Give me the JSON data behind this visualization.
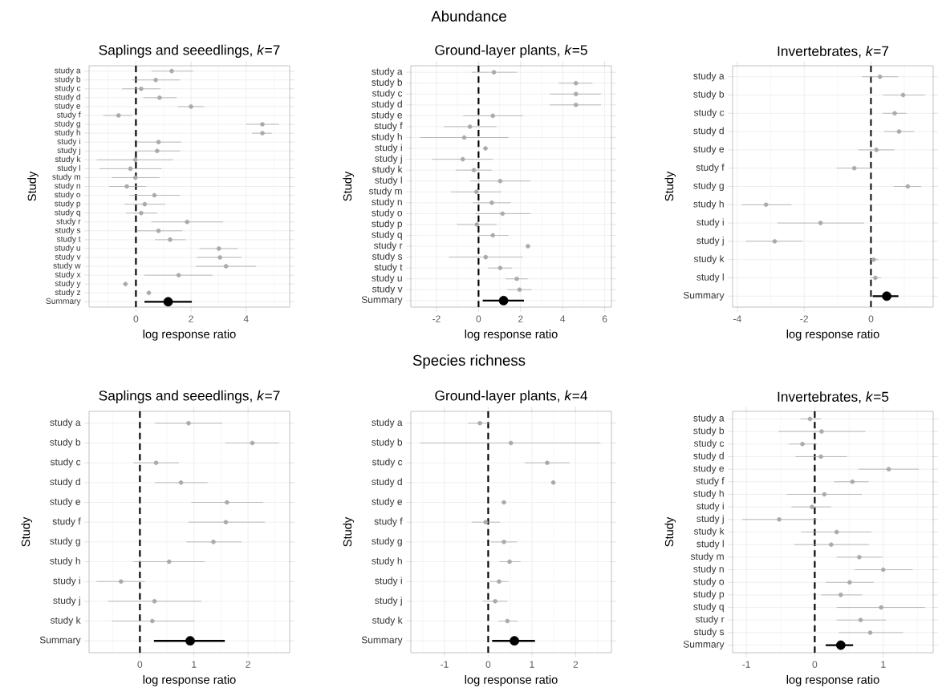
{
  "chart_data": [
    {
      "type": "scatter",
      "orientation": "horizontal",
      "title": "Saplings and seeedlings, *k*=7",
      "xlabel": "log response ratio",
      "ylabel": "Study",
      "grid": true,
      "marker": "circle",
      "categories": [
        "study a",
        "study b",
        "study c",
        "study d",
        "study e",
        "study f",
        "study g",
        "study h",
        "study i",
        "study j",
        "study k",
        "study l",
        "study m",
        "study n",
        "study o",
        "study p",
        "study q",
        "study r",
        "study s",
        "study t",
        "study u",
        "study v",
        "study w",
        "study x",
        "study y",
        "study z",
        "Summary"
      ],
      "xlim": [
        -1.7,
        5.58
      ],
      "xticks": [
        {
          "value": -1,
          "label": null
        },
        0,
        {
          "value": 1,
          "label": null
        },
        2,
        {
          "value": 3,
          "label": null
        },
        4,
        {
          "value": 5,
          "label": null
        }
      ],
      "ref_lines": [
        {
          "axis": "x",
          "value": 0,
          "line_style": "dashed",
          "color": "#000000"
        }
      ],
      "series": [
        {
          "color": "#aaaaaa",
          "values": [
            1.3,
            0.72,
            0.19,
            0.86,
            2.0,
            -0.63,
            4.59,
            4.59,
            0.82,
            0.77,
            -0.02,
            -0.2,
            -0.02,
            -0.33,
            0.67,
            0.32,
            0.19,
            1.86,
            0.82,
            1.24,
            3.01,
            3.05,
            3.27,
            1.55,
            -0.38,
            0.47,
            null
          ],
          "errors": [
            [
              0.57,
              2.08
            ],
            [
              -0.15,
              1.6
            ],
            [
              -0.5,
              0.89
            ],
            [
              0.27,
              1.48
            ],
            [
              1.52,
              2.48
            ],
            [
              -1.19,
              -0.12
            ],
            [
              4.0,
              5.19
            ],
            [
              4.22,
              4.93
            ],
            [
              0.04,
              1.64
            ],
            [
              0.04,
              1.6
            ],
            [
              -1.42,
              1.34
            ],
            [
              -1.32,
              0.94
            ],
            [
              -0.87,
              0.86
            ],
            [
              -0.97,
              0.37
            ],
            [
              -0.23,
              1.6
            ],
            [
              -0.41,
              1.07
            ],
            [
              -0.36,
              0.77
            ],
            [
              0.56,
              3.17
            ],
            [
              0.04,
              1.68
            ],
            [
              0.69,
              1.81
            ],
            [
              2.31,
              3.7
            ],
            [
              2.22,
              3.83
            ],
            [
              2.18,
              4.36
            ],
            [
              0.31,
              2.78
            ],
            null,
            null,
            null
          ]
        },
        {
          "color": "#000000",
          "values": [
            null,
            null,
            null,
            null,
            null,
            null,
            null,
            null,
            null,
            null,
            null,
            null,
            null,
            null,
            null,
            null,
            null,
            null,
            null,
            null,
            null,
            null,
            null,
            null,
            null,
            null,
            1.17
          ],
          "errors": [
            null,
            null,
            null,
            null,
            null,
            null,
            null,
            null,
            null,
            null,
            null,
            null,
            null,
            null,
            null,
            null,
            null,
            null,
            null,
            null,
            null,
            null,
            null,
            null,
            null,
            null,
            [
              0.31,
              2.03
            ]
          ]
        }
      ]
    },
    {
      "type": "scatter",
      "orientation": "horizontal",
      "title": "Ground-layer plants, *k*=5",
      "xlabel": "log response ratio",
      "ylabel": "Study",
      "grid": true,
      "marker": "circle",
      "annotations": [
        "Abundance"
      ],
      "categories": [
        "study a",
        "study b",
        "study c",
        "study d",
        "study e",
        "study f",
        "study h",
        "study i",
        "study j",
        "study k",
        "study l",
        "study m",
        "study n",
        "study o",
        "study p",
        "study q",
        "study r",
        "study s",
        "study t",
        "study u",
        "study v",
        "Summary"
      ],
      "xlim": [
        -3.22,
        6.32
      ],
      "xticks": [
        {
          "value": -3,
          "label": null
        },
        -2,
        {
          "value": -1,
          "label": null
        },
        0,
        {
          "value": 1,
          "label": null
        },
        2,
        {
          "value": 3,
          "label": null
        },
        4,
        {
          "value": 5,
          "label": null
        },
        6
      ],
      "ref_lines": [
        {
          "axis": "x",
          "value": 0,
          "line_style": "dashed",
          "color": "#000000"
        }
      ],
      "series": [
        {
          "color": "#aaaaaa",
          "values": [
            0.73,
            4.63,
            4.63,
            4.63,
            0.68,
            -0.41,
            -0.68,
            0.33,
            -0.75,
            -0.22,
            1.03,
            -0.1,
            0.63,
            1.14,
            -0.08,
            0.68,
            2.35,
            0.34,
            1.03,
            1.82,
            1.95,
            null
          ],
          "errors": [
            [
              -0.33,
              1.82
            ],
            [
              3.81,
              5.42
            ],
            [
              3.39,
              5.82
            ],
            [
              3.39,
              5.82
            ],
            [
              -0.73,
              2.11
            ],
            [
              -1.65,
              0.85
            ],
            [
              -2.78,
              1.42
            ],
            null,
            [
              -2.22,
              0.68
            ],
            [
              -1.09,
              0.62
            ],
            [
              -0.39,
              2.46
            ],
            [
              -1.32,
              1.08
            ],
            [
              -0.28,
              1.53
            ],
            [
              -0.15,
              2.46
            ],
            [
              -1.03,
              0.85
            ],
            [
              0.0,
              1.42
            ],
            null,
            [
              -1.42,
              2.11
            ],
            [
              0.46,
              1.6
            ],
            [
              1.28,
              2.34
            ],
            [
              1.37,
              2.51
            ],
            null
          ]
        },
        {
          "color": "#000000",
          "values": [
            null,
            null,
            null,
            null,
            null,
            null,
            null,
            null,
            null,
            null,
            null,
            null,
            null,
            null,
            null,
            null,
            null,
            null,
            null,
            null,
            null,
            1.19
          ],
          "errors": [
            null,
            null,
            null,
            null,
            null,
            null,
            null,
            null,
            null,
            null,
            null,
            null,
            null,
            null,
            null,
            null,
            null,
            null,
            null,
            null,
            null,
            [
              0.2,
              2.16
            ]
          ]
        }
      ]
    },
    {
      "type": "scatter",
      "orientation": "horizontal",
      "title": "Invertebrates, *k*=7",
      "xlabel": "log response ratio",
      "ylabel": "Study",
      "grid": true,
      "marker": "circle",
      "categories": [
        "study a",
        "study b",
        "study c",
        "study d",
        "study e",
        "study f",
        "study g",
        "study h",
        "study i",
        "study j",
        "study k",
        "study l",
        "Summary"
      ],
      "xlim": [
        -4.14,
        1.86
      ],
      "xticks": [
        -4,
        {
          "value": -3,
          "label": null
        },
        -2,
        {
          "value": -1,
          "label": null
        },
        0,
        {
          "value": 1,
          "label": null
        }
      ],
      "ref_lines": [
        {
          "axis": "x",
          "value": 0,
          "line_style": "dashed",
          "color": "#000000"
        }
      ],
      "series": [
        {
          "color": "#aaaaaa",
          "values": [
            0.27,
            0.96,
            0.71,
            0.84,
            0.16,
            -0.5,
            1.1,
            -3.14,
            -1.51,
            -2.88,
            0.08,
            0.13,
            null
          ],
          "errors": [
            [
              -0.27,
              0.81
            ],
            [
              0.35,
              1.61
            ],
            [
              0.35,
              1.06
            ],
            [
              0.39,
              1.29
            ],
            [
              -0.38,
              0.7
            ],
            [
              -1.03,
              -0.01
            ],
            [
              0.68,
              1.5
            ],
            [
              -3.86,
              -2.38
            ],
            [
              -2.8,
              -0.21
            ],
            [
              -3.74,
              -2.06
            ],
            [
              -0.03,
              0.22
            ],
            [
              -0.01,
              0.3
            ],
            null
          ]
        },
        {
          "color": "#000000",
          "values": [
            null,
            null,
            null,
            null,
            null,
            null,
            null,
            null,
            null,
            null,
            null,
            null,
            0.47
          ],
          "errors": [
            null,
            null,
            null,
            null,
            null,
            null,
            null,
            null,
            null,
            null,
            null,
            null,
            [
              0.05,
              0.82
            ]
          ]
        }
      ]
    },
    {
      "type": "scatter",
      "orientation": "horizontal",
      "title": "Saplings and seeedlings, *k*=7",
      "xlabel": "log response ratio",
      "ylabel": "Study",
      "grid": true,
      "marker": "circle",
      "categories": [
        "study a",
        "study b",
        "study c",
        "study d",
        "study e",
        "study f",
        "study g",
        "study h",
        "study i",
        "study j",
        "study k",
        "Summary"
      ],
      "xlim": [
        -0.94,
        2.77
      ],
      "xticks": [
        {
          "value": -0.5,
          "label": null
        },
        0,
        {
          "value": 0.5,
          "label": null
        },
        1,
        {
          "value": 1.5,
          "label": null
        },
        2,
        {
          "value": 2.5,
          "label": null
        }
      ],
      "ref_lines": [
        {
          "axis": "x",
          "value": 0,
          "line_style": "dashed",
          "color": "#000000"
        }
      ],
      "series": [
        {
          "color": "#aaaaaa",
          "values": [
            0.9,
            2.08,
            0.3,
            0.76,
            1.61,
            1.59,
            1.36,
            0.54,
            -0.35,
            0.27,
            0.23,
            null
          ],
          "errors": [
            [
              0.28,
              1.52
            ],
            [
              1.58,
              2.57
            ],
            [
              -0.12,
              0.72
            ],
            [
              0.28,
              1.25
            ],
            [
              0.95,
              2.28
            ],
            [
              0.9,
              2.31
            ],
            [
              0.86,
              1.88
            ],
            [
              -0.12,
              1.2
            ],
            [
              -0.8,
              0.09
            ],
            [
              -0.59,
              1.14
            ],
            [
              -0.52,
              1.01
            ],
            null
          ]
        },
        {
          "color": "#000000",
          "values": [
            null,
            null,
            null,
            null,
            null,
            null,
            null,
            null,
            null,
            null,
            null,
            0.93
          ],
          "errors": [
            null,
            null,
            null,
            null,
            null,
            null,
            null,
            null,
            null,
            null,
            null,
            [
              0.26,
              1.57
            ]
          ]
        }
      ]
    },
    {
      "type": "scatter",
      "orientation": "horizontal",
      "title": "Ground-layer plants, *k*=4",
      "xlabel": "log response ratio",
      "ylabel": "Study",
      "grid": true,
      "marker": "circle",
      "annotations": [
        "Species richness"
      ],
      "categories": [
        "study a",
        "study b",
        "study c",
        "study d",
        "study e",
        "study f",
        "study g",
        "study h",
        "study i",
        "study j",
        "study k",
        "Summary"
      ],
      "xlim": [
        -1.77,
        2.82
      ],
      "xticks": [
        {
          "value": -1.5,
          "label": null
        },
        -1,
        {
          "value": -0.5,
          "label": null
        },
        0,
        {
          "value": 0.5,
          "label": null
        },
        1,
        {
          "value": 1.5,
          "label": null
        },
        2,
        {
          "value": 2.5,
          "label": null
        }
      ],
      "ref_lines": [
        {
          "axis": "x",
          "value": 0,
          "line_style": "dashed",
          "color": "#000000"
        }
      ],
      "series": [
        {
          "color": "#aaaaaa",
          "values": [
            -0.19,
            0.52,
            1.35,
            1.49,
            0.36,
            -0.06,
            0.36,
            0.49,
            0.25,
            0.16,
            0.44,
            null
          ],
          "errors": [
            [
              -0.46,
              0.05
            ],
            [
              -1.56,
              2.57
            ],
            [
              0.84,
              1.86
            ],
            null,
            null,
            [
              -0.38,
              0.27
            ],
            [
              0.06,
              0.66
            ],
            [
              0.26,
              0.74
            ],
            [
              0.04,
              0.46
            ],
            [
              -0.13,
              0.44
            ],
            [
              0.23,
              0.68
            ],
            null
          ]
        },
        {
          "color": "#000000",
          "values": [
            null,
            null,
            null,
            null,
            null,
            null,
            null,
            null,
            null,
            null,
            null,
            0.6
          ],
          "errors": [
            null,
            null,
            null,
            null,
            null,
            null,
            null,
            null,
            null,
            null,
            null,
            [
              0.09,
              1.07
            ]
          ]
        }
      ]
    },
    {
      "type": "scatter",
      "orientation": "horizontal",
      "title": "Invertebrates, *k*=5",
      "xlabel": "log response ratio",
      "ylabel": "Study",
      "grid": true,
      "marker": "circle",
      "categories": [
        "study a",
        "study b",
        "study c",
        "study d",
        "study e",
        "study f",
        "study h",
        "study i",
        "study j",
        "study k",
        "study l",
        "study m",
        "study n",
        "study o",
        "study p",
        "study q",
        "study r",
        "study s",
        "Summary"
      ],
      "xlim": [
        -1.2,
        1.73
      ],
      "xticks": [
        -1,
        {
          "value": -0.5,
          "label": null
        },
        0,
        {
          "value": 0.5,
          "label": null
        },
        1,
        {
          "value": 1.5,
          "label": null
        }
      ],
      "ref_lines": [
        {
          "axis": "x",
          "value": 0,
          "line_style": "dashed",
          "color": "#000000"
        }
      ],
      "series": [
        {
          "color": "#aaaaaa",
          "values": [
            -0.07,
            0.1,
            -0.18,
            0.09,
            1.08,
            0.55,
            0.14,
            -0.04,
            -0.52,
            0.32,
            0.24,
            0.65,
            1.0,
            0.51,
            0.38,
            0.97,
            0.67,
            0.81,
            null
          ],
          "errors": [
            [
              -0.21,
              0.09
            ],
            [
              -0.53,
              0.74
            ],
            [
              -0.38,
              0.03
            ],
            [
              -0.28,
              0.47
            ],
            [
              0.64,
              1.52
            ],
            [
              0.28,
              0.79
            ],
            [
              -0.41,
              0.69
            ],
            [
              -0.34,
              0.24
            ],
            [
              -1.06,
              0.03
            ],
            [
              -0.2,
              0.83
            ],
            [
              -0.3,
              0.79
            ],
            [
              0.32,
              0.98
            ],
            [
              0.58,
              1.43
            ],
            [
              0.16,
              0.86
            ],
            [
              0.09,
              0.69
            ],
            [
              0.32,
              1.61
            ],
            [
              0.32,
              1.04
            ],
            [
              0.35,
              1.29
            ],
            null
          ]
        },
        {
          "color": "#000000",
          "values": [
            null,
            null,
            null,
            null,
            null,
            null,
            null,
            null,
            null,
            null,
            null,
            null,
            null,
            null,
            null,
            null,
            null,
            null,
            0.38
          ],
          "errors": [
            null,
            null,
            null,
            null,
            null,
            null,
            null,
            null,
            null,
            null,
            null,
            null,
            null,
            null,
            null,
            null,
            null,
            null,
            [
              0.16,
              0.56
            ]
          ]
        }
      ]
    }
  ]
}
